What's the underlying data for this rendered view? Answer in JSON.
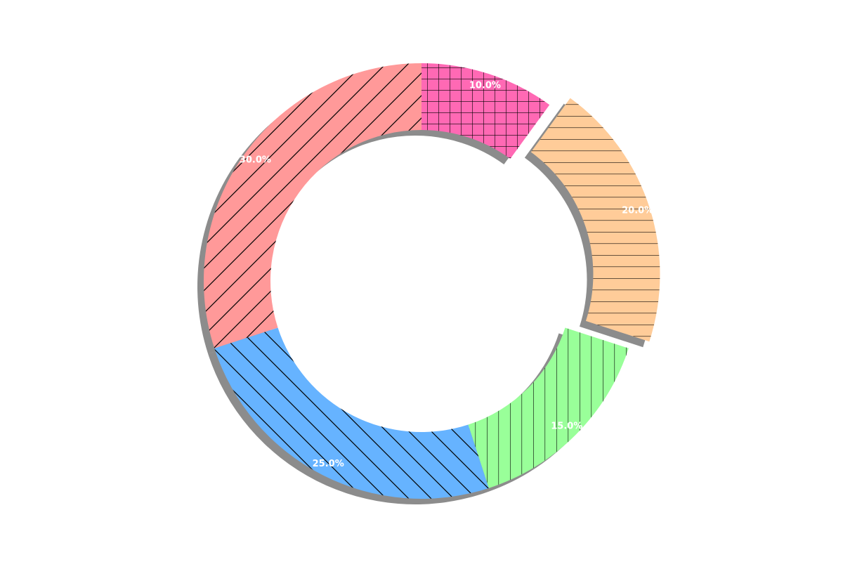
{
  "chart_data": {
    "type": "pie",
    "donut": true,
    "start_angle_deg": 90,
    "direction": "clockwise",
    "shadow": true,
    "slices": [
      {
        "label": "",
        "value": 10.0,
        "pct_label": "10.0%",
        "color": "#ff69b4",
        "hatch": "grid",
        "explode": 0
      },
      {
        "label": "",
        "value": 20.0,
        "pct_label": "20.0%",
        "color": "#ffcc99",
        "hatch": "horizontal",
        "explode": 0.1
      },
      {
        "label": "",
        "value": 15.0,
        "pct_label": "15.0%",
        "color": "#99ff99",
        "hatch": "vertical",
        "explode": 0
      },
      {
        "label": "",
        "value": 25.0,
        "pct_label": "25.0%",
        "color": "#66b3ff",
        "hatch": "backslash",
        "explode": 0
      },
      {
        "label": "",
        "value": 30.0,
        "pct_label": "30.0%",
        "color": "#ff9999",
        "hatch": "slash",
        "explode": 0
      }
    ]
  }
}
